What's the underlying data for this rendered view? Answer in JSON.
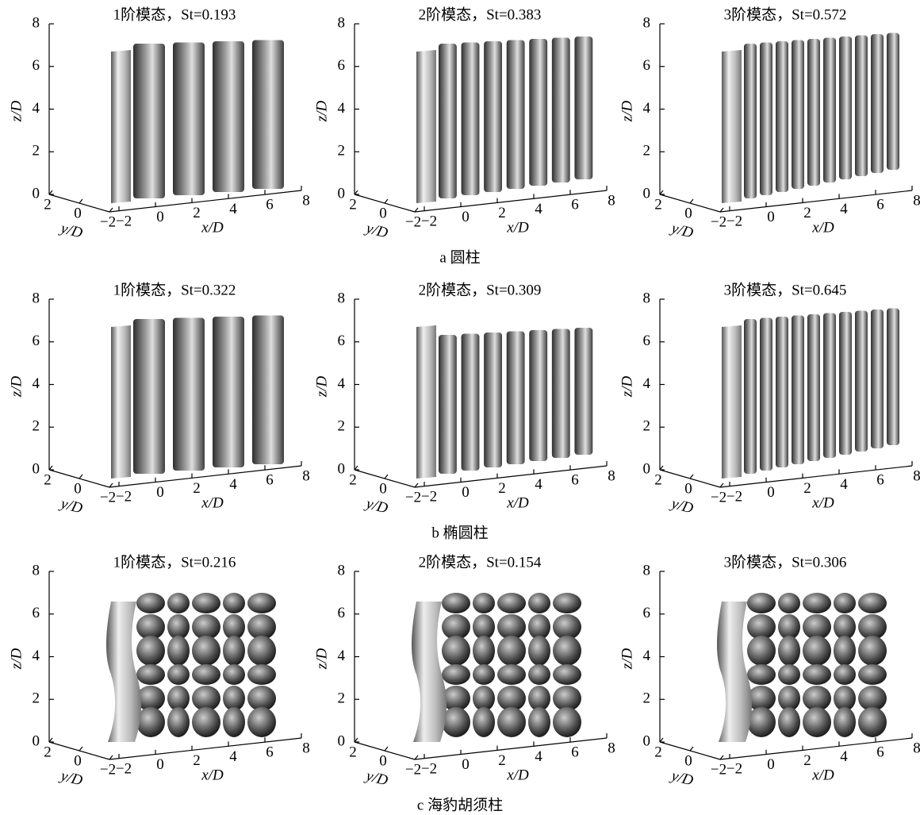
{
  "rows": [
    {
      "caption": "a 圆柱",
      "panels": [
        "1阶模态，St=0.193",
        "2阶模态，St=0.383",
        "3阶模态，St=0.572"
      ]
    },
    {
      "caption": "b 椭圆柱",
      "panels": [
        "1阶模态，St=0.322",
        "2阶模态，St=0.309",
        "3阶模态，St=0.645"
      ]
    },
    {
      "caption": "c 海豹胡须柱",
      "panels": [
        "1阶模态，St=0.216",
        "2阶模态，St=0.154",
        "3阶模态，St=0.306"
      ]
    }
  ],
  "axes": {
    "z_label": "z/D",
    "y_label": "y/D",
    "x_label": "x/D",
    "z_ticks": [
      0,
      2,
      4,
      6,
      8
    ],
    "y_ticks": [
      2,
      0,
      {
        "value": -2,
        "label": "−2"
      }
    ],
    "x_ticks": [
      {
        "value": -2,
        "label": "−2"
      },
      0,
      2,
      4,
      6,
      8
    ]
  }
}
